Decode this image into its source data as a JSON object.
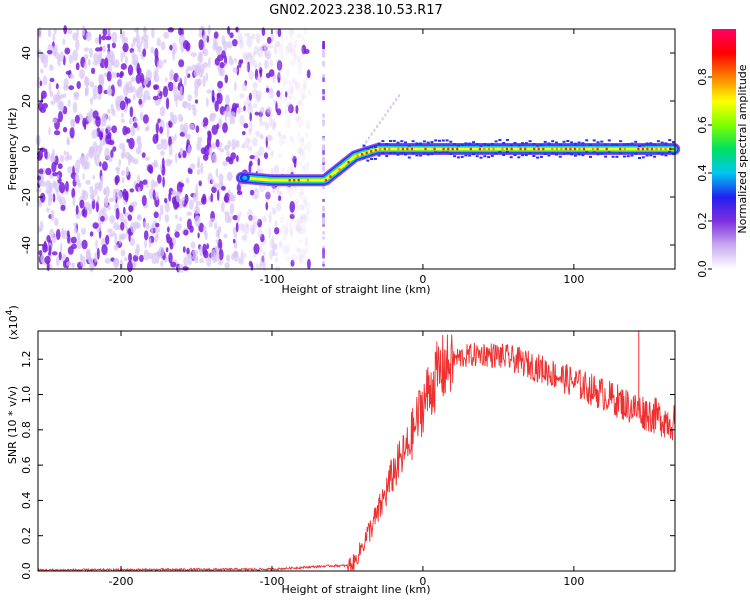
{
  "title": "GN02.2023.238.10.53.R17",
  "chart_data": [
    {
      "type": "heatmap",
      "xlabel": "Height of straight line (km)",
      "ylabel": "Frequency (Hz)",
      "xlim": [
        -255,
        167
      ],
      "ylim": [
        -50,
        50
      ],
      "xticks": [
        -200,
        -100,
        0,
        100
      ],
      "yticks": [
        -40,
        -20,
        0,
        20,
        40
      ],
      "colorbar": {
        "label": "Normalized spectral amplitude",
        "range": [
          0.0,
          1.0
        ],
        "ticks": [
          "0.0",
          "0.2",
          "0.4",
          "0.6",
          "0.8"
        ],
        "tick_values": [
          0.0,
          0.2,
          0.4,
          0.6,
          0.8
        ],
        "colormap": [
          "#ffffff",
          "#c9a8f0",
          "#7d2fe0",
          "#2020f0",
          "#00c8f0",
          "#00e060",
          "#80ff00",
          "#ffff00",
          "#ff8000",
          "#ff0000",
          "#ff0066"
        ]
      },
      "noise_region_x": [
        -255,
        -95
      ],
      "noise_color": "#7a1fdc",
      "trace": {
        "x": [
          -120,
          -100,
          -65,
          -45,
          -30,
          0,
          50,
          100,
          167
        ],
        "y": [
          -12,
          -13,
          -13,
          -3,
          0,
          0,
          0,
          0,
          0
        ]
      },
      "spike_x": -66
    },
    {
      "type": "line",
      "xlabel": "Height of straight line (km)",
      "ylabel": "SNR (10 * v/v)",
      "multiplier_base": "(x10",
      "multiplier_exp": "4",
      "multiplier_close": ")",
      "xlim": [
        -255,
        167
      ],
      "ylim": [
        0,
        1.36
      ],
      "xticks": [
        -200,
        -100,
        0,
        100
      ],
      "yticks": [
        0.0,
        0.2,
        0.4,
        0.6,
        0.8,
        1.0,
        1.2
      ],
      "color": "#ee3030",
      "envelope": {
        "x": [
          -255,
          -100,
          -80,
          -60,
          -50,
          -45,
          -40,
          -30,
          -20,
          -10,
          0,
          10,
          20,
          30,
          40,
          50,
          60,
          80,
          100,
          120,
          140,
          150,
          160,
          167
        ],
        "y": [
          0.005,
          0.01,
          0.02,
          0.03,
          0.03,
          0.05,
          0.15,
          0.32,
          0.55,
          0.7,
          0.95,
          1.12,
          1.2,
          1.22,
          1.23,
          1.22,
          1.2,
          1.14,
          1.07,
          1.0,
          0.92,
          0.89,
          0.86,
          0.84
        ]
      },
      "spike": {
        "x": 143,
        "y": 1.37
      }
    }
  ]
}
